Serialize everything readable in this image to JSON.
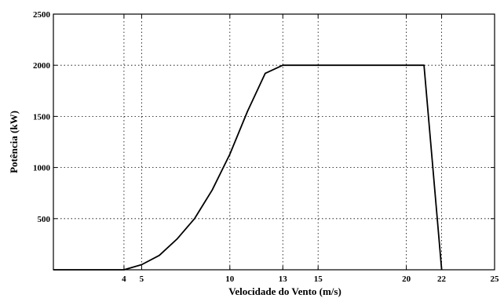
{
  "chart_data": {
    "type": "line",
    "xlabel": "Velocidade do Vento (m/s)",
    "ylabel": "Potência (kW)",
    "xlim": [
      0,
      25
    ],
    "ylim": [
      0,
      2500
    ],
    "xticks": [
      4,
      5,
      10,
      13,
      15,
      20,
      22,
      25
    ],
    "yticks": [
      500,
      1000,
      1500,
      2000,
      2500
    ],
    "grid": true,
    "series": [
      {
        "x": [
          0,
          4,
          5,
          6,
          7,
          8,
          9,
          10,
          11,
          12,
          13,
          21,
          22
        ],
        "y": [
          0,
          0,
          50,
          140,
          300,
          500,
          780,
          1130,
          1550,
          1920,
          2000,
          2000,
          0
        ]
      }
    ]
  }
}
